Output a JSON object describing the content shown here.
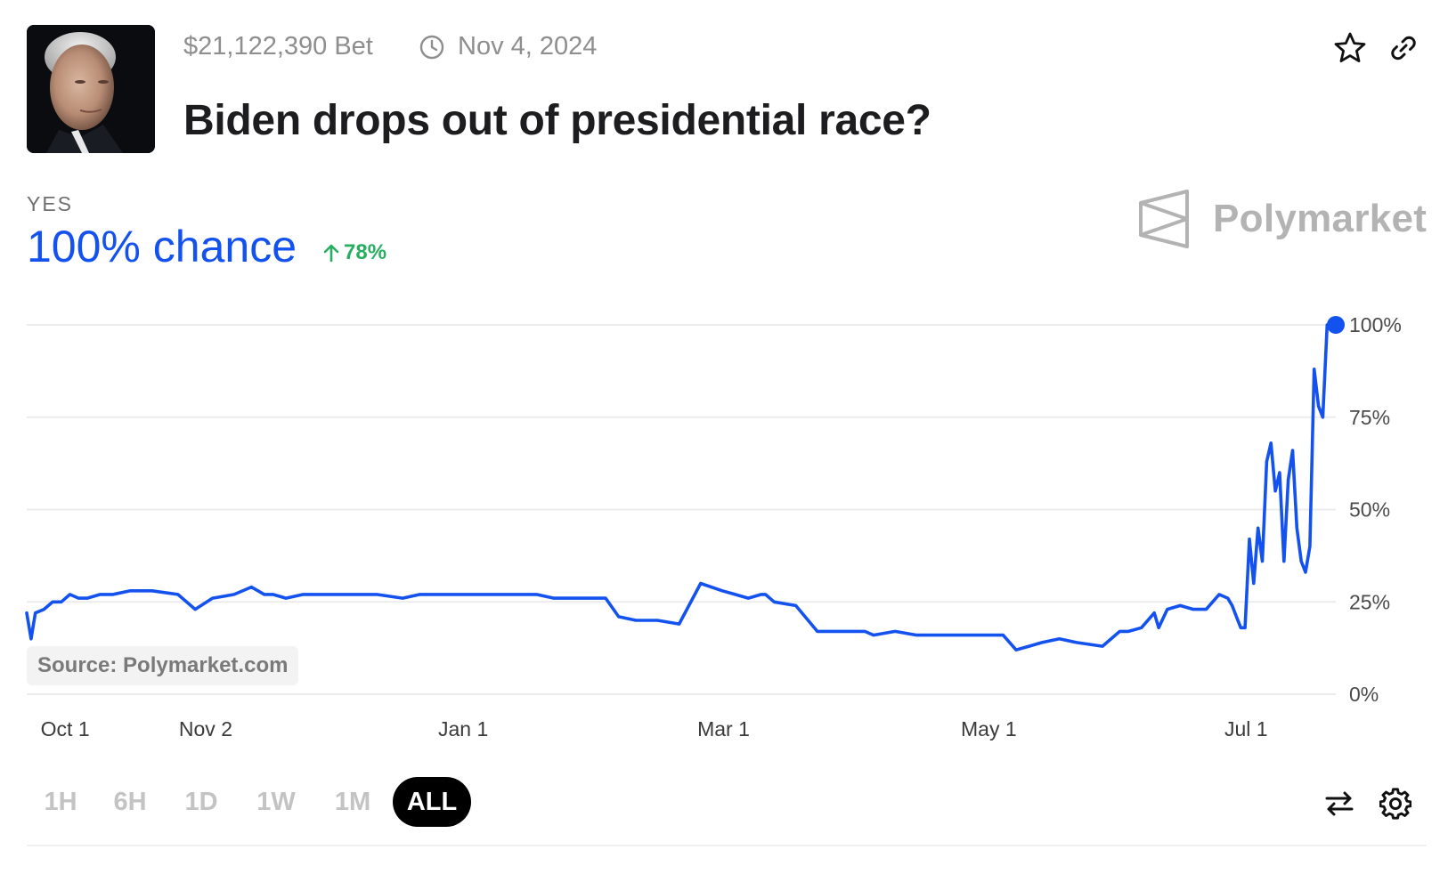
{
  "market": {
    "volume": "$21,122,390 Bet",
    "end_date": "Nov 4, 2024",
    "title": "Biden drops out of presidential race?",
    "outcome": "YES",
    "chance": "100% chance",
    "change": "78%",
    "brand": "Polymarket",
    "source": "Source: Polymarket.com"
  },
  "icons": {
    "clock": "clock-icon",
    "star": "star-icon",
    "link": "link-icon",
    "swap": "swap-arrows-icon",
    "settings": "gear-icon",
    "change_arrow": "arrow-up-icon"
  },
  "ranges": [
    {
      "label": "1H",
      "active": false
    },
    {
      "label": "6H",
      "active": false
    },
    {
      "label": "1D",
      "active": false
    },
    {
      "label": "1W",
      "active": false
    },
    {
      "label": "1M",
      "active": false
    },
    {
      "label": "ALL",
      "active": true
    }
  ],
  "colors": {
    "line": "#1452f0",
    "change_up": "#27ae60",
    "grid": "#ececec",
    "brand": "#b3b3b3"
  },
  "chart_data": {
    "type": "line",
    "title": "",
    "xlabel": "",
    "ylabel": "",
    "ylim": [
      0,
      100
    ],
    "y_ticks": [
      0,
      25,
      50,
      75,
      100
    ],
    "y_tick_labels": [
      "0%",
      "25%",
      "50%",
      "75%",
      "100%"
    ],
    "x_ticks": [
      "2023-10-01",
      "2023-11-02",
      "2024-01-01",
      "2024-03-01",
      "2024-05-01",
      "2024-07-01"
    ],
    "x_tick_labels": [
      "Oct 1",
      "Nov 2",
      "Jan 1",
      "Mar 1",
      "May 1",
      "Jul 1"
    ],
    "grid": true,
    "series": [
      {
        "x": [
          "2023-09-22",
          "2023-09-23",
          "2023-09-24",
          "2023-09-26",
          "2023-09-28",
          "2023-09-30",
          "2023-10-02",
          "2023-10-04",
          "2023-10-06",
          "2023-10-09",
          "2023-10-12",
          "2023-10-16",
          "2023-10-21",
          "2023-10-27",
          "2023-10-31",
          "2023-11-04",
          "2023-11-09",
          "2023-11-13",
          "2023-11-16",
          "2023-11-18",
          "2023-11-21",
          "2023-11-25",
          "2023-11-29",
          "2023-12-05",
          "2023-12-12",
          "2023-12-18",
          "2023-12-22",
          "2023-12-27",
          "2024-01-01",
          "2024-01-06",
          "2024-01-12",
          "2024-01-18",
          "2024-01-22",
          "2024-01-23",
          "2024-01-26",
          "2024-02-03",
          "2024-02-06",
          "2024-02-10",
          "2024-02-15",
          "2024-02-20",
          "2024-02-25",
          "2024-03-01",
          "2024-03-04",
          "2024-03-07",
          "2024-03-10",
          "2024-03-11",
          "2024-03-13",
          "2024-03-18",
          "2024-03-23",
          "2024-03-28",
          "2024-04-02",
          "2024-04-03",
          "2024-04-05",
          "2024-04-10",
          "2024-04-15",
          "2024-04-20",
          "2024-04-25",
          "2024-04-30",
          "2024-05-02",
          "2024-05-04",
          "2024-05-05",
          "2024-05-08",
          "2024-05-11",
          "2024-05-14",
          "2024-05-18",
          "2024-05-22",
          "2024-05-28",
          "2024-06-01",
          "2024-06-03",
          "2024-06-06",
          "2024-06-09",
          "2024-06-10",
          "2024-06-12",
          "2024-06-15",
          "2024-06-18",
          "2024-06-21",
          "2024-06-24",
          "2024-06-26",
          "2024-06-27",
          "2024-06-28",
          "2024-06-29",
          "2024-06-30",
          "2024-07-01",
          "2024-07-02",
          "2024-07-03",
          "2024-07-04",
          "2024-07-05",
          "2024-07-06",
          "2024-07-07",
          "2024-07-08",
          "2024-07-09",
          "2024-07-10",
          "2024-07-11",
          "2024-07-12",
          "2024-07-13",
          "2024-07-14",
          "2024-07-15",
          "2024-07-16",
          "2024-07-17",
          "2024-07-18",
          "2024-07-19",
          "2024-07-20",
          "2024-07-21"
        ],
        "y": [
          22,
          15,
          22,
          23,
          25,
          25,
          27,
          26,
          26,
          27,
          27,
          28,
          28,
          27,
          23,
          26,
          27,
          29,
          27,
          27,
          26,
          27,
          27,
          27,
          27,
          26,
          27,
          27,
          27,
          27,
          27,
          27,
          26,
          26,
          26,
          26,
          21,
          20,
          20,
          19,
          30,
          28,
          27,
          26,
          27,
          27,
          25,
          24,
          17,
          17,
          17,
          17,
          16,
          17,
          16,
          16,
          16,
          16,
          16,
          16,
          16,
          12,
          13,
          14,
          15,
          14,
          13,
          17,
          17,
          18,
          22,
          18,
          23,
          24,
          23,
          23,
          27,
          26,
          24,
          21,
          18,
          18,
          42,
          30,
          45,
          36,
          63,
          68,
          55,
          60,
          36,
          58,
          66,
          45,
          36,
          33,
          40,
          88,
          78,
          75,
          100,
          100,
          100
        ]
      }
    ]
  }
}
